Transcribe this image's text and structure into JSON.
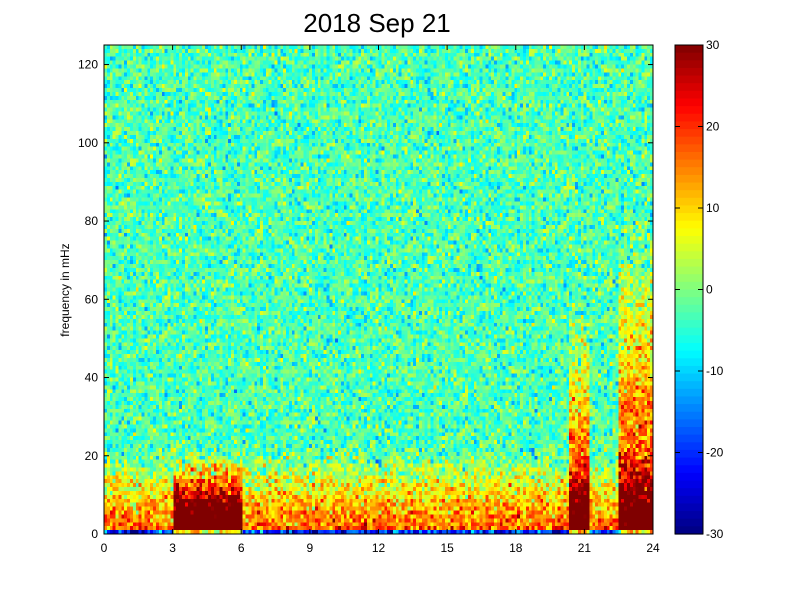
{
  "chart_data": {
    "type": "heatmap",
    "title": "2018 Sep 21",
    "xlabel": "",
    "ylabel": "frequency in mHz",
    "xlim": [
      0,
      24
    ],
    "ylim": [
      0,
      125
    ],
    "x_ticks": [
      "0",
      "3",
      "6",
      "9",
      "12",
      "15",
      "18",
      "21",
      "24"
    ],
    "y_ticks": [
      "0",
      "20",
      "40",
      "60",
      "80",
      "100",
      "120"
    ],
    "colorbar": {
      "colormap": "jet",
      "clim": [
        -30,
        30
      ],
      "ticks": [
        "30",
        "20",
        "10",
        "0",
        "-10",
        "-20",
        "-30"
      ]
    },
    "grid": {
      "time_bins": 190,
      "freq_bins": 125
    },
    "description_of_pattern": {
      "background_level": -3,
      "low_frequency_band": {
        "freq_range_mHz": [
          2,
          15
        ],
        "level": 20
      },
      "lowest_row_level": -20,
      "events": [
        {
          "time_range_h": [
            20.3,
            21.2
          ],
          "freq_max_mHz": 60,
          "peak_level": 30
        },
        {
          "time_range_h": [
            22.5,
            24
          ],
          "freq_max_mHz": 80,
          "peak_level": 30
        },
        {
          "time_range_h": [
            3,
            6
          ],
          "freq_max_mHz": 20,
          "peak_level": 25
        }
      ]
    }
  }
}
